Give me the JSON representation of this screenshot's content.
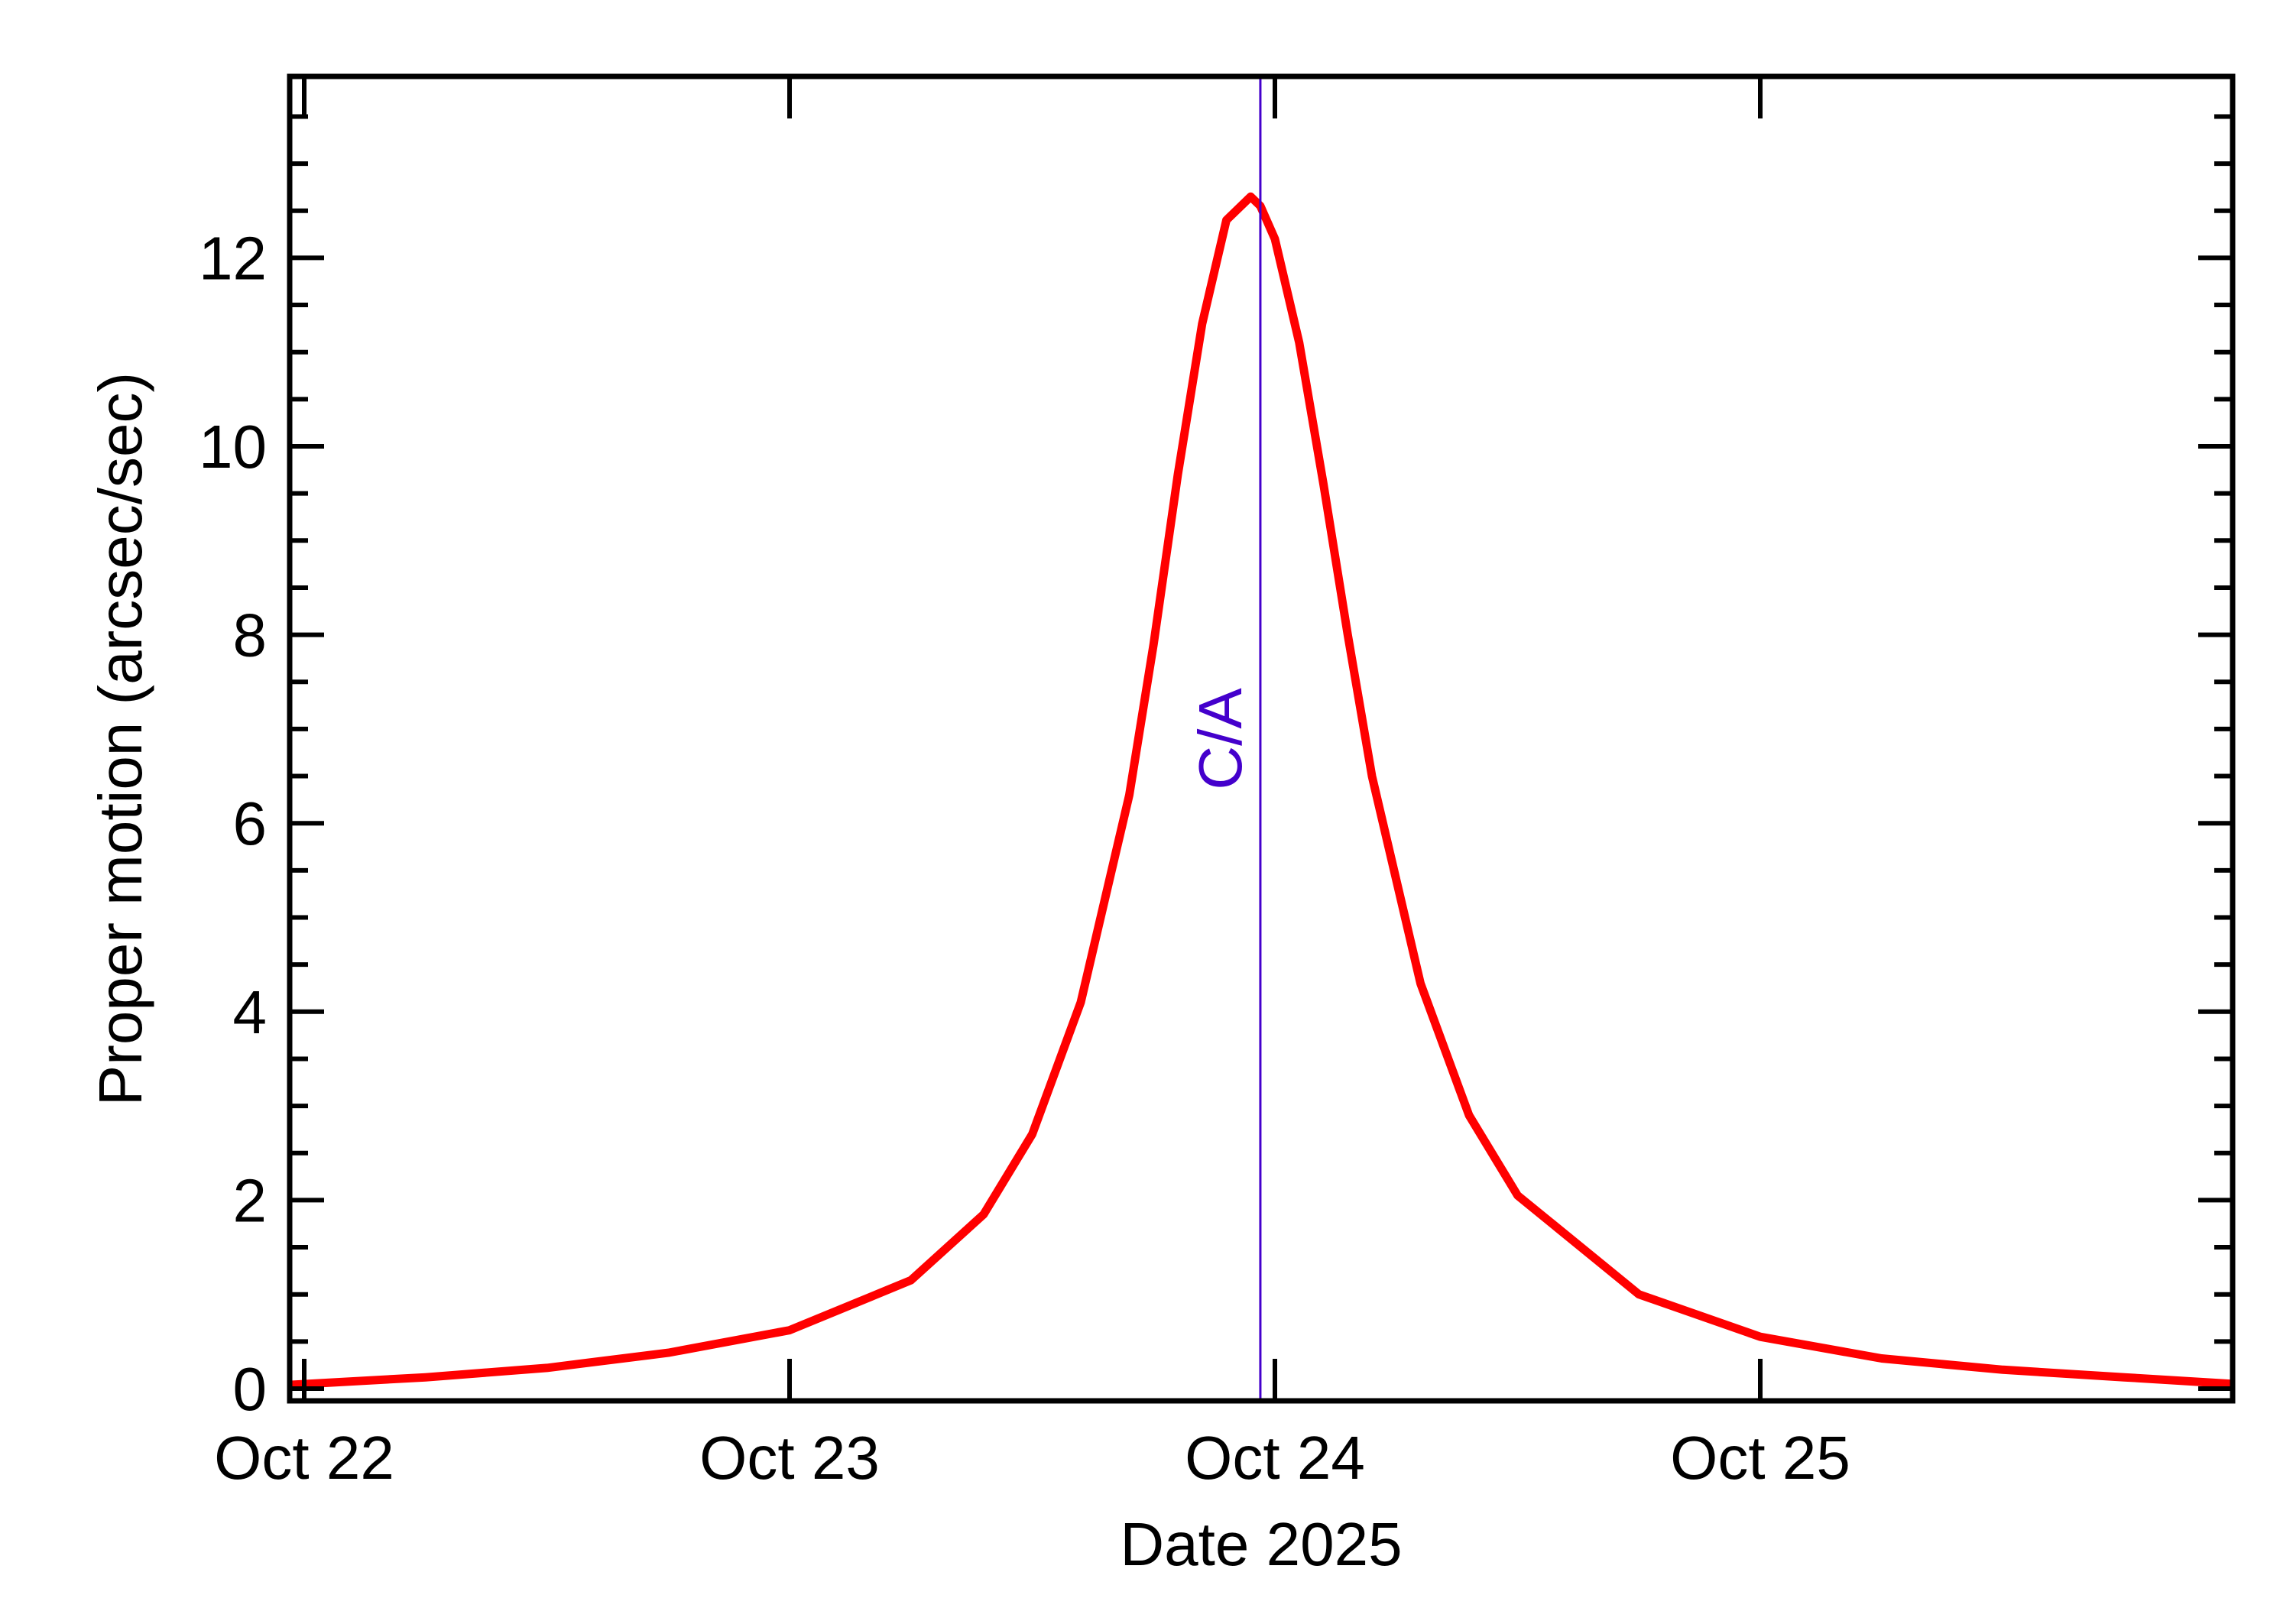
{
  "chart_data": {
    "type": "line",
    "title": "",
    "xlabel": "Date 2025",
    "ylabel": "Proper motion (arcsec/sec)",
    "x_ticks": [
      "Oct 22",
      "Oct 23",
      "Oct 24",
      "Oct 25"
    ],
    "y_ticks": [
      "0",
      "2",
      "4",
      "6",
      "8",
      "10",
      "12"
    ],
    "xlim_days_from_oct22": [
      -0.03,
      3.97
    ],
    "ylim": [
      -0.2,
      13.9
    ],
    "grid": false,
    "annotation": {
      "label": "C/A",
      "x_days_from_oct22": 1.97,
      "color": "#4400cc"
    },
    "series": [
      {
        "name": "Proper motion",
        "color": "#ff0000",
        "x_days_from_oct22": [
          -0.03,
          0.25,
          0.5,
          0.75,
          1.0,
          1.25,
          1.4,
          1.5,
          1.6,
          1.7,
          1.75,
          1.8,
          1.85,
          1.9,
          1.95,
          1.97,
          2.0,
          2.05,
          2.1,
          2.15,
          2.2,
          2.3,
          2.4,
          2.5,
          2.75,
          3.0,
          3.25,
          3.5,
          3.75,
          3.97
        ],
        "values": [
          0.04,
          0.12,
          0.22,
          0.38,
          0.62,
          1.15,
          1.85,
          2.7,
          4.1,
          6.3,
          7.9,
          9.7,
          11.3,
          12.4,
          12.65,
          12.55,
          12.2,
          11.1,
          9.6,
          8.0,
          6.5,
          4.3,
          2.9,
          2.05,
          1.0,
          0.55,
          0.32,
          0.2,
          0.12,
          0.05
        ]
      }
    ]
  }
}
